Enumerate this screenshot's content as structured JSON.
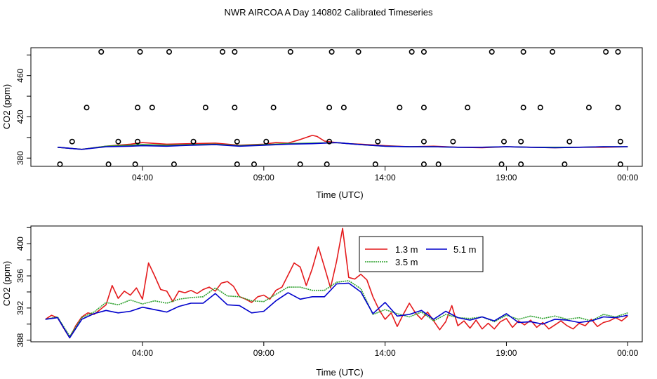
{
  "title": "NWR AIRCOA A  Day 140802  Calibrated Timeseries",
  "chart_data": [
    {
      "type": "scatter",
      "xlabel": "Time (UTC)",
      "ylabel": "CO2 (ppm)",
      "x_ticks": [
        4,
        9,
        14,
        19,
        24
      ],
      "x_tick_labels": [
        "04:00",
        "09:00",
        "14:00",
        "19:00",
        "00:00"
      ],
      "y_ticks": [
        380,
        420,
        460
      ],
      "xlim": [
        -0.6,
        24.6
      ],
      "ylim": [
        372,
        487
      ],
      "series": [
        {
          "name": "1.3 m",
          "color": "#e41a1c",
          "style": "line",
          "x": [
            0.5,
            1.5,
            2.5,
            3.5,
            4.0,
            5.0,
            6.0,
            7.0,
            8.0,
            9.0,
            9.5,
            10.0,
            10.5,
            11.0,
            11.2,
            11.5,
            12.0,
            12.5,
            13.0,
            14.0,
            15.0,
            16.0,
            17.0,
            18.0,
            19.0,
            20.0,
            21.0,
            22.0,
            23.0,
            24.0
          ],
          "y": [
            390.5,
            388.5,
            391.5,
            393.5,
            395.0,
            393.5,
            394.0,
            394.5,
            392.5,
            393.5,
            395.0,
            394.5,
            398.0,
            402.0,
            401.0,
            396.5,
            395.0,
            394.0,
            393.5,
            392.0,
            391.0,
            391.5,
            390.5,
            390.0,
            391.0,
            390.5,
            390.0,
            390.5,
            390.5,
            391.0
          ]
        },
        {
          "name": "3.5 m",
          "color": "#2ca02c",
          "style": "line",
          "x": [
            0.5,
            1.5,
            2.5,
            3.5,
            4.0,
            5.0,
            6.0,
            7.0,
            8.0,
            9.0,
            10.0,
            11.0,
            12.0,
            13.0,
            14.0,
            15.0,
            16.0,
            17.0,
            18.0,
            19.0,
            20.0,
            21.0,
            22.0,
            23.0,
            24.0
          ],
          "y": [
            390.5,
            388.5,
            391.5,
            392.5,
            393.0,
            392.5,
            393.0,
            393.5,
            392.0,
            393.0,
            394.0,
            394.5,
            395.0,
            393.0,
            391.5,
            391.0,
            391.0,
            390.5,
            390.5,
            391.0,
            390.5,
            390.5,
            390.5,
            391.0,
            391.0
          ]
        },
        {
          "name": "5.1 m",
          "color": "#0000cc",
          "style": "line",
          "x": [
            0.5,
            1.5,
            2.5,
            3.5,
            4.0,
            5.0,
            6.0,
            7.0,
            8.0,
            9.0,
            10.0,
            11.0,
            12.0,
            13.0,
            14.0,
            15.0,
            16.0,
            17.0,
            18.0,
            19.0,
            20.0,
            21.0,
            22.0,
            23.0,
            24.0
          ],
          "y": [
            390.5,
            388.5,
            391.0,
            391.5,
            392.0,
            391.5,
            392.5,
            393.0,
            391.5,
            392.5,
            393.5,
            394.0,
            395.0,
            393.0,
            391.5,
            391.0,
            391.0,
            390.5,
            390.5,
            391.0,
            390.5,
            390.0,
            390.5,
            391.0,
            391.0
          ]
        },
        {
          "name": "",
          "color": "#000000",
          "style": "points",
          "x": [
            2.3,
            3.9,
            5.1,
            7.3,
            7.8,
            10.1,
            11.8,
            12.9,
            15.1,
            15.6,
            18.4,
            19.7,
            20.9,
            23.1,
            23.6,
            1.7,
            3.8,
            4.4,
            6.6,
            7.8,
            9.4,
            11.7,
            12.3,
            14.6,
            15.6,
            17.4,
            19.7,
            20.4,
            22.4,
            23.6,
            1.1,
            3.0,
            3.8,
            6.1,
            7.9,
            9.1,
            11.7,
            13.7,
            15.6,
            16.8,
            18.9,
            19.6,
            21.6,
            23.7,
            0.6,
            2.6,
            3.7,
            5.3,
            7.9,
            8.6,
            10.5,
            11.6,
            13.6,
            15.6,
            16.2,
            18.8,
            19.6,
            21.4,
            23.7
          ],
          "y": [
            483,
            483,
            483,
            483,
            483,
            483,
            483,
            483,
            483,
            483,
            483,
            483,
            483,
            483,
            483,
            429,
            429,
            429,
            429,
            429,
            429,
            429,
            429,
            429,
            429,
            429,
            429,
            429,
            429,
            429,
            396,
            396,
            396,
            396,
            396,
            396,
            396,
            396,
            396,
            396,
            396,
            396,
            396,
            396,
            374,
            374,
            374,
            374,
            374,
            374,
            374,
            374,
            374,
            374,
            374,
            374,
            374,
            374,
            374
          ]
        }
      ]
    },
    {
      "type": "line",
      "xlabel": "Time (UTC)",
      "ylabel": "CO2 (ppm)",
      "x_ticks": [
        4,
        9,
        14,
        19,
        24
      ],
      "x_tick_labels": [
        "04:00",
        "09:00",
        "14:00",
        "19:00",
        "00:00"
      ],
      "y_ticks": [
        388,
        392,
        396,
        400
      ],
      "xlim": [
        -0.6,
        24.6
      ],
      "ylim": [
        387.8,
        402.2
      ],
      "legend": "top-center",
      "series": [
        {
          "name": "1.3 m",
          "color": "#e41a1c",
          "x": [
            0.0,
            0.25,
            0.5,
            0.75,
            1.0,
            1.25,
            1.5,
            1.75,
            2.0,
            2.25,
            2.5,
            2.75,
            3.0,
            3.25,
            3.5,
            3.75,
            4.0,
            4.25,
            4.5,
            4.75,
            5.0,
            5.25,
            5.5,
            5.75,
            6.0,
            6.25,
            6.5,
            6.75,
            7.0,
            7.25,
            7.5,
            7.75,
            8.0,
            8.25,
            8.5,
            8.75,
            9.0,
            9.25,
            9.5,
            9.75,
            10.0,
            10.25,
            10.5,
            10.75,
            11.0,
            11.25,
            11.5,
            11.75,
            12.0,
            12.25,
            12.5,
            12.75,
            13.0,
            13.25,
            13.5,
            13.75,
            14.0,
            14.25,
            14.5,
            14.75,
            15.0,
            15.25,
            15.5,
            15.75,
            16.0,
            16.25,
            16.5,
            16.75,
            17.0,
            17.25,
            17.5,
            17.75,
            18.0,
            18.25,
            18.5,
            18.75,
            19.0,
            19.25,
            19.5,
            19.75,
            20.0,
            20.25,
            20.5,
            20.75,
            21.0,
            21.25,
            21.5,
            21.75,
            22.0,
            22.25,
            22.5,
            22.75,
            23.0,
            23.25,
            23.5,
            23.75,
            24.0
          ],
          "y": [
            390.6,
            391.1,
            390.8,
            389.5,
            388.3,
            389.8,
            390.9,
            391.4,
            391.2,
            391.8,
            392.4,
            394.8,
            393.2,
            394.1,
            393.6,
            394.5,
            393.1,
            397.6,
            396.0,
            394.3,
            394.1,
            392.8,
            394.1,
            393.9,
            394.2,
            393.8,
            394.3,
            394.6,
            394.1,
            395.1,
            395.3,
            394.7,
            393.4,
            393.1,
            392.7,
            393.4,
            393.6,
            393.1,
            394.2,
            394.6,
            396.1,
            397.6,
            397.1,
            394.8,
            396.9,
            399.6,
            397.1,
            394.5,
            397.8,
            401.9,
            395.8,
            395.6,
            396.2,
            395.5,
            393.4,
            391.8,
            390.6,
            391.4,
            389.7,
            391.2,
            392.6,
            391.4,
            390.6,
            391.5,
            390.4,
            389.3,
            390.3,
            392.3,
            389.8,
            390.4,
            389.5,
            390.5,
            389.4,
            390.1,
            389.4,
            390.3,
            390.7,
            389.6,
            390.4,
            389.9,
            390.5,
            389.6,
            390.2,
            389.4,
            389.9,
            390.4,
            389.8,
            389.4,
            390.1,
            389.8,
            390.6,
            389.7,
            390.2,
            390.4,
            390.8,
            390.4,
            391.0
          ]
        },
        {
          "name": "3.5 m",
          "color": "#2ca02c",
          "x": [
            0.0,
            0.5,
            1.0,
            1.5,
            2.0,
            2.5,
            3.0,
            3.5,
            4.0,
            4.5,
            5.0,
            5.5,
            6.0,
            6.5,
            7.0,
            7.5,
            8.0,
            8.5,
            9.0,
            9.5,
            10.0,
            10.5,
            11.0,
            11.5,
            12.0,
            12.5,
            13.0,
            13.5,
            14.0,
            14.5,
            15.0,
            15.5,
            16.0,
            16.5,
            17.0,
            17.5,
            18.0,
            18.5,
            19.0,
            19.5,
            20.0,
            20.5,
            21.0,
            21.5,
            22.0,
            22.5,
            23.0,
            23.5,
            24.0
          ],
          "y": [
            390.6,
            390.9,
            388.5,
            390.8,
            391.5,
            392.7,
            392.4,
            393.0,
            392.5,
            392.9,
            392.6,
            393.1,
            393.3,
            393.4,
            394.5,
            393.5,
            393.4,
            392.9,
            392.8,
            393.7,
            394.6,
            394.6,
            394.2,
            394.2,
            395.2,
            395.4,
            394.4,
            391.2,
            391.8,
            391.3,
            390.9,
            391.5,
            390.4,
            391.2,
            390.8,
            390.7,
            390.9,
            390.3,
            391.1,
            390.6,
            391.0,
            390.7,
            391.0,
            390.6,
            390.8,
            390.4,
            391.2,
            390.9,
            391.4
          ]
        },
        {
          "name": "5.1 m",
          "color": "#0000cc",
          "x": [
            0.0,
            0.5,
            1.0,
            1.5,
            2.0,
            2.5,
            3.0,
            3.5,
            4.0,
            4.5,
            5.0,
            5.5,
            6.0,
            6.5,
            7.0,
            7.5,
            8.0,
            8.5,
            9.0,
            9.5,
            10.0,
            10.5,
            11.0,
            11.5,
            12.0,
            12.5,
            13.0,
            13.5,
            14.0,
            14.5,
            15.0,
            15.5,
            16.0,
            16.5,
            17.0,
            17.5,
            18.0,
            18.5,
            19.0,
            19.5,
            20.0,
            20.5,
            21.0,
            21.5,
            22.0,
            22.5,
            23.0,
            23.5,
            24.0
          ],
          "y": [
            390.6,
            390.8,
            388.3,
            390.6,
            391.3,
            391.7,
            391.4,
            391.6,
            392.1,
            391.8,
            391.5,
            392.2,
            392.6,
            392.6,
            393.8,
            392.4,
            392.3,
            391.4,
            391.6,
            392.9,
            393.9,
            393.1,
            393.4,
            393.4,
            395.0,
            395.1,
            394.0,
            391.3,
            392.7,
            391.0,
            391.2,
            391.7,
            390.6,
            391.6,
            390.8,
            390.5,
            390.9,
            390.4,
            391.3,
            390.2,
            390.3,
            390.0,
            390.6,
            390.5,
            390.2,
            390.4,
            390.9,
            390.8,
            391.1
          ]
        }
      ]
    }
  ]
}
